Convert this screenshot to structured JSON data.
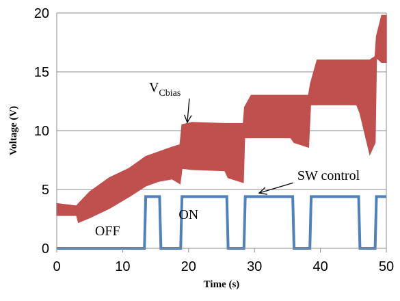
{
  "chart_data": {
    "type": "area",
    "xlabel": "Time (s)",
    "ylabel": "Voltage (V)",
    "xlim": [
      0,
      50
    ],
    "ylim": [
      0,
      20
    ],
    "x_ticks": [
      "0",
      "10",
      "20",
      "30",
      "40",
      "50"
    ],
    "y_ticks": [
      "0",
      "5",
      "10",
      "15",
      "20"
    ],
    "grid": "horizontal",
    "series": [
      {
        "name": "V",
        "name_subscript": "Cbias",
        "color": "#C0504D",
        "style": "envelope",
        "x": [
          0,
          3,
          3.3,
          5,
          8,
          11,
          13.5,
          15.5,
          17.5,
          18.7,
          19,
          20.5,
          25.5,
          26,
          28.3,
          28.5,
          29.5,
          35.5,
          36,
          38.2,
          38.5,
          39.5,
          45.5,
          46,
          47.5,
          48.3,
          48.5,
          49.3,
          50
        ],
        "upper": [
          3.8,
          3.6,
          3.8,
          4.8,
          6.0,
          6.8,
          7.8,
          8.2,
          8.6,
          8.8,
          10.5,
          10.7,
          10.6,
          10.6,
          10.6,
          12.0,
          13.0,
          13.0,
          13.0,
          13.0,
          14.0,
          16.0,
          16.0,
          16.0,
          16.0,
          16.3,
          18.0,
          19.8,
          19.8
        ],
        "lower": [
          2.8,
          2.8,
          2.2,
          2.6,
          3.4,
          4.4,
          5.3,
          5.7,
          5.9,
          5.5,
          6.8,
          6.7,
          6.6,
          6.0,
          5.6,
          9.4,
          9.4,
          9.4,
          9.0,
          8.6,
          12.2,
          12.2,
          12.2,
          11.5,
          8.0,
          9.0,
          16.2,
          15.8,
          15.8
        ]
      },
      {
        "name": "SW control",
        "color": "#4F81BD",
        "style": "line",
        "x": [
          0,
          13.3,
          13.5,
          15.6,
          15.8,
          18.8,
          19.0,
          25.8,
          26.0,
          28.4,
          28.6,
          35.8,
          36.0,
          38.4,
          38.6,
          45.8,
          46.0,
          48.3,
          48.5,
          50
        ],
        "y": [
          0,
          0,
          4.4,
          4.4,
          0,
          0,
          4.4,
          4.4,
          0,
          0,
          4.4,
          4.4,
          0,
          0,
          4.4,
          4.4,
          0,
          0,
          4.4,
          4.4
        ]
      }
    ],
    "annotations": [
      {
        "text": "V",
        "subscript": "Cbias",
        "x": 14,
        "y": 13.3,
        "arrow_to": [
          19.8,
          10.7
        ]
      },
      {
        "text": "SW control",
        "x": 36.5,
        "y": 5.8,
        "arrow_to": [
          30.7,
          4.7
        ]
      },
      {
        "text": "OFF",
        "x": 5.8,
        "y": 1.1
      },
      {
        "text": "ON",
        "x": 18.5,
        "y": 2.5
      }
    ]
  }
}
